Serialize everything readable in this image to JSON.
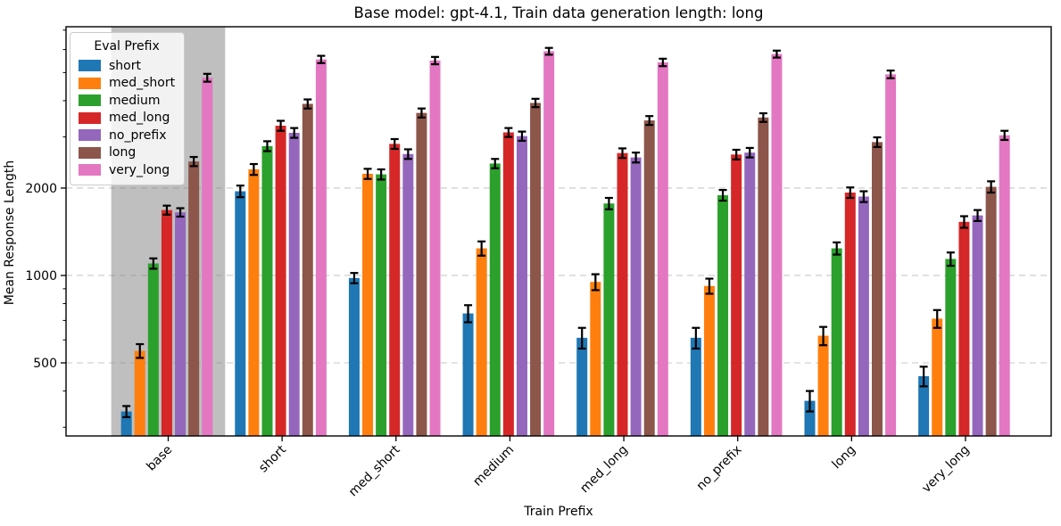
{
  "title": "Base model: gpt-4.1, Train data generation length: long",
  "chart_data": {
    "type": "bar",
    "title": "Base model: gpt-4.1, Train data generation length: long",
    "xlabel": "Train Prefix",
    "ylabel": "Mean Response Length",
    "yscale": "log",
    "ylim": [
      280,
      7190
    ],
    "yticks_major": [
      500,
      1000,
      2000
    ],
    "ytick_labels": [
      "500",
      "1000",
      "2000"
    ],
    "yticks_minor": [
      300,
      400,
      600,
      700,
      800,
      900,
      3000,
      4000,
      5000,
      6000,
      7000
    ],
    "grid": "horizontal dashed at major ticks",
    "legend_title": "Eval Prefix",
    "legend_position": "upper left",
    "highlight_band": {
      "category": "base",
      "color": "#808080",
      "alpha": 0.5
    },
    "error_bars": true,
    "categories": [
      "base",
      "short",
      "med_short",
      "medium",
      "med_long",
      "no_prefix",
      "long",
      "very_long"
    ],
    "series": [
      {
        "name": "short",
        "color": "#1f77b4",
        "values": [
          340,
          1950,
          980,
          740,
          610,
          610,
          370,
          450
        ],
        "errors": [
          15,
          90,
          40,
          50,
          50,
          50,
          30,
          35
        ]
      },
      {
        "name": "med_short",
        "color": "#ff7f0e",
        "values": [
          550,
          2320,
          2240,
          1240,
          950,
          920,
          620,
          710
        ],
        "errors": [
          30,
          100,
          90,
          70,
          60,
          55,
          45,
          50
        ]
      },
      {
        "name": "medium",
        "color": "#2ca02c",
        "values": [
          1100,
          2790,
          2230,
          2430,
          1770,
          1890,
          1240,
          1140
        ],
        "errors": [
          45,
          110,
          90,
          90,
          80,
          80,
          60,
          60
        ]
      },
      {
        "name": "med_long",
        "color": "#d62728",
        "values": [
          1680,
          3280,
          2840,
          3110,
          2640,
          2610,
          1930,
          1530
        ],
        "errors": [
          60,
          130,
          110,
          110,
          100,
          100,
          80,
          70
        ]
      },
      {
        "name": "no_prefix",
        "color": "#9467bd",
        "values": [
          1650,
          3100,
          2620,
          3020,
          2550,
          2650,
          1870,
          1610
        ],
        "errors": [
          55,
          120,
          100,
          110,
          100,
          100,
          80,
          70
        ]
      },
      {
        "name": "long",
        "color": "#8c564b",
        "values": [
          2470,
          3900,
          3630,
          3930,
          3420,
          3500,
          2880,
          2020
        ],
        "errors": [
          90,
          140,
          130,
          130,
          120,
          120,
          110,
          90
        ]
      },
      {
        "name": "very_long",
        "color": "#e377c2",
        "values": [
          4800,
          5550,
          5500,
          5920,
          5420,
          5790,
          4930,
          3040
        ],
        "errors": [
          150,
          160,
          160,
          160,
          160,
          160,
          150,
          110
        ]
      }
    ]
  },
  "colors": {
    "grid": "#c8c8c8",
    "spine": "#000000",
    "band_fill": "rgba(128,128,128,0.5)",
    "error_bar": "#000000"
  }
}
